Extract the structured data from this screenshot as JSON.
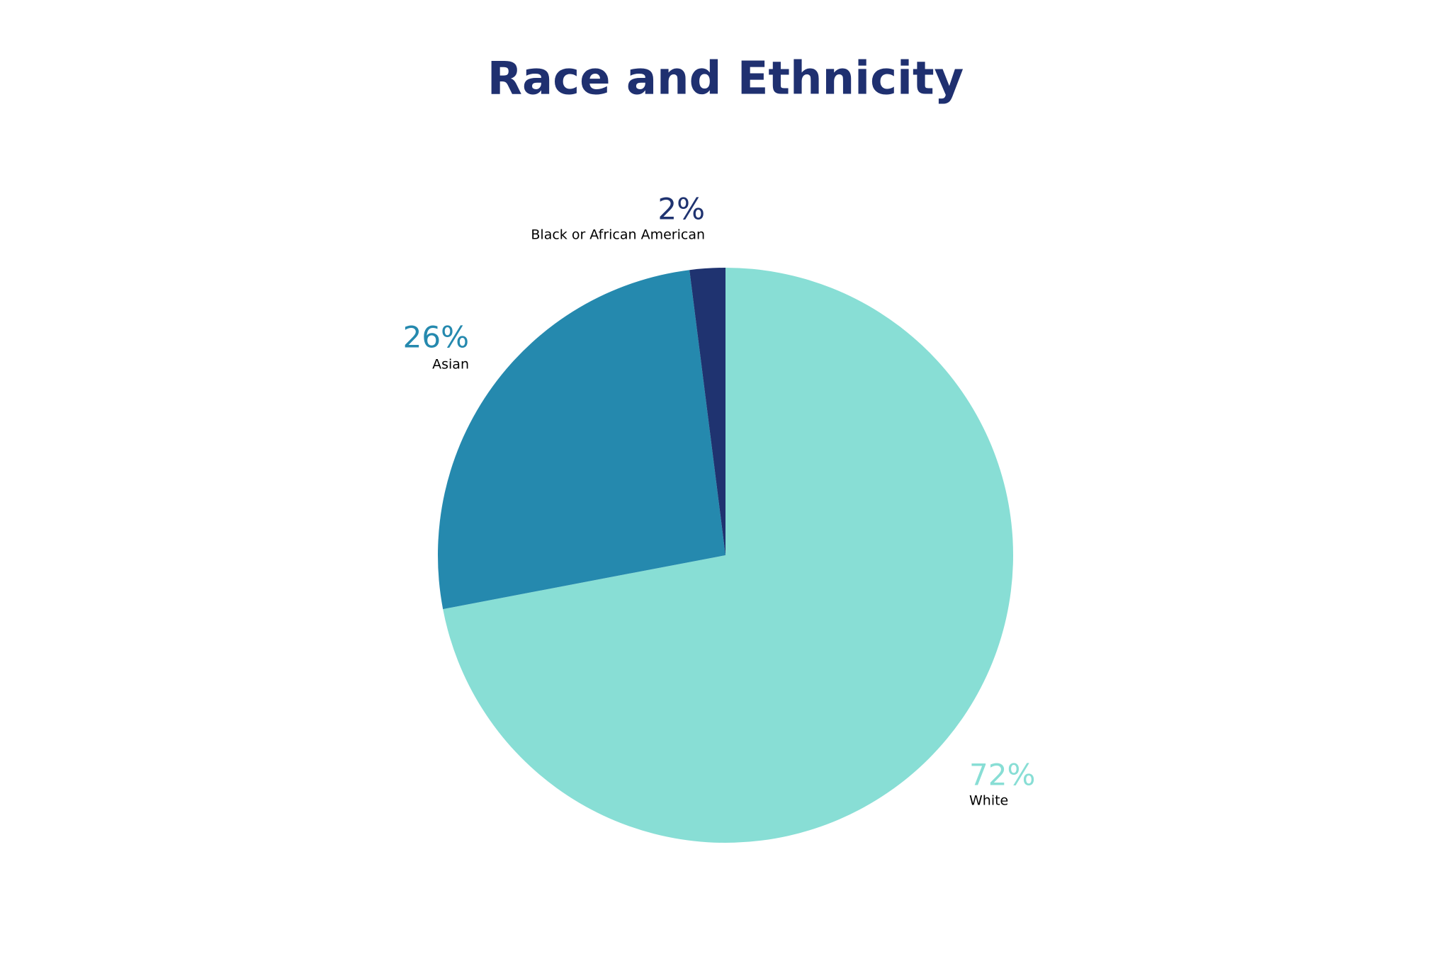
{
  "chart_data": {
    "type": "pie",
    "title": "Race and Ethnicity",
    "categories": [
      "White",
      "Asian",
      "Black or African American"
    ],
    "values": [
      72,
      26,
      2
    ],
    "value_labels": [
      "72%",
      "26%",
      "2%"
    ],
    "colors": [
      "#88ded5",
      "#2589ae",
      "#1f3370"
    ]
  }
}
